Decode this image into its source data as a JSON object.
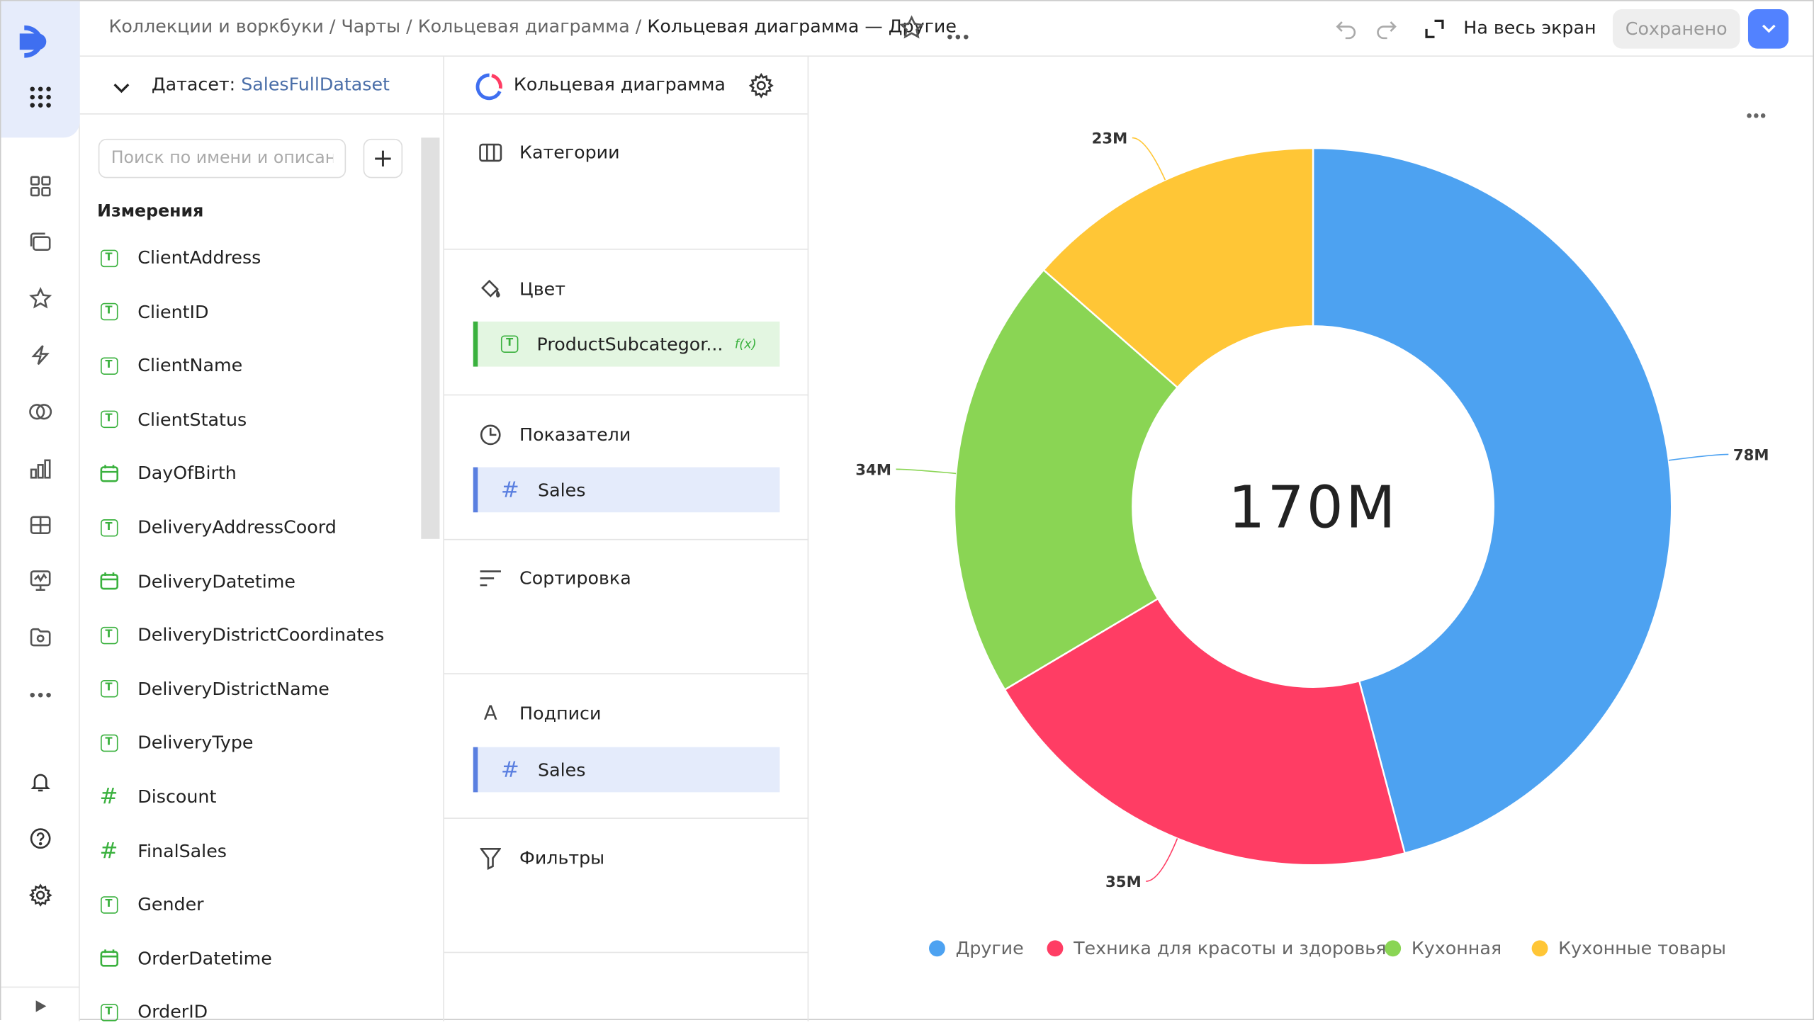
{
  "header": {
    "breadcrumbs": [
      "Коллекции и воркбуки",
      "Чарты",
      "Кольцевая диаграмма"
    ],
    "current": "Кольцевая диаграмма — Другие",
    "fullscreen_label": "На весь экран",
    "saved_label": "Сохранено"
  },
  "dataset": {
    "label": "Датасет:",
    "name": "SalesFullDataset",
    "search_placeholder": "Поиск по имени и описанию",
    "dimensions_title": "Измерения",
    "fields": [
      {
        "name": "ClientAddress",
        "type": "text"
      },
      {
        "name": "ClientID",
        "type": "text"
      },
      {
        "name": "ClientName",
        "type": "text"
      },
      {
        "name": "ClientStatus",
        "type": "text"
      },
      {
        "name": "DayOfBirth",
        "type": "date"
      },
      {
        "name": "DeliveryAddressCoord",
        "type": "text"
      },
      {
        "name": "DeliveryDatetime",
        "type": "date"
      },
      {
        "name": "DeliveryDistrictCoordinates",
        "type": "text"
      },
      {
        "name": "DeliveryDistrictName",
        "type": "text"
      },
      {
        "name": "DeliveryType",
        "type": "text"
      },
      {
        "name": "Discount",
        "type": "number"
      },
      {
        "name": "FinalSales",
        "type": "number"
      },
      {
        "name": "Gender",
        "type": "text"
      },
      {
        "name": "OrderDatetime",
        "type": "date"
      },
      {
        "name": "OrderID",
        "type": "text"
      }
    ]
  },
  "visualization": {
    "type_label": "Кольцевая диаграмма",
    "sections": {
      "categories": "Категории",
      "color": "Цвет",
      "measures": "Показатели",
      "sort": "Сортировка",
      "labels": "Подписи",
      "filters": "Фильтры"
    },
    "color_field": "ProductSubcategor...",
    "color_field_badge": "f(x)",
    "measure_field": "Sales",
    "label_field": "Sales"
  },
  "chart_data": {
    "type": "pie",
    "variant": "donut",
    "total_label": "170M",
    "categories": [
      "Другие",
      "Техника для красоты и здоровья",
      "Кухонная",
      "Кухонные товары"
    ],
    "values": [
      78,
      35,
      34,
      23
    ],
    "value_labels": [
      "78M",
      "35M",
      "34M",
      "23M"
    ],
    "colors": [
      "#4da2f1",
      "#ff3d64",
      "#8ad554",
      "#ffc636"
    ],
    "legend_position": "bottom"
  }
}
